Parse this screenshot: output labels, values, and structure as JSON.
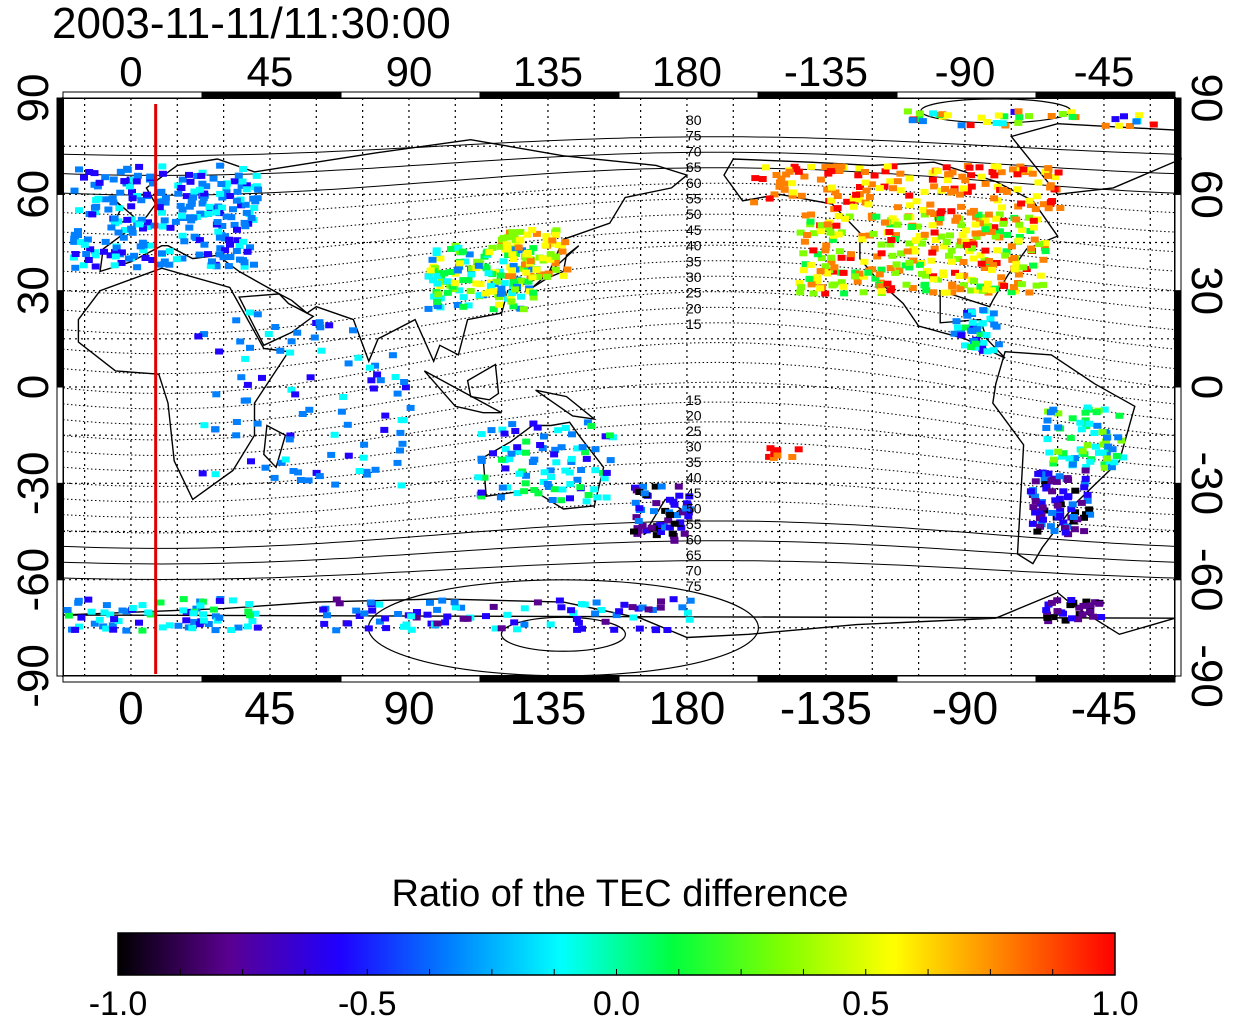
{
  "timestamp": "2003-11-11/11:30:00",
  "map": {
    "lon_ticks": [
      "0",
      "45",
      "90",
      "135",
      "180",
      "-135",
      "-90",
      "-45"
    ],
    "lon_values": [
      0,
      45,
      90,
      135,
      180,
      225,
      270,
      315
    ],
    "lat_ticks": [
      "90",
      "60",
      "30",
      "0",
      "-30",
      "-60",
      "-90"
    ],
    "lat_values": [
      90,
      60,
      30,
      0,
      -30,
      -60,
      -90
    ],
    "lon_range": [
      -22,
      338
    ],
    "lat_range": [
      -90,
      90
    ],
    "marker_line_lon": 8,
    "marker_line_color": "#e00000",
    "contour_labels_north": [
      "80",
      "75",
      "70",
      "65",
      "60",
      "55",
      "50",
      "45",
      "40",
      "35",
      "30",
      "25",
      "20",
      "15"
    ],
    "contour_labels_south": [
      "15",
      "20",
      "25",
      "30",
      "35",
      "40",
      "45",
      "50",
      "55",
      "60",
      "65",
      "70",
      "75"
    ]
  },
  "colorbar": {
    "title": "Ratio of the TEC difference",
    "ticks": [
      "-1.0",
      "-0.5",
      "0.0",
      "0.5",
      "1.0"
    ],
    "tick_values": [
      -1.0,
      -0.5,
      0.0,
      0.5,
      1.0
    ],
    "range": [
      -1.0,
      1.0
    ],
    "colors": [
      "#000000",
      "#5a0090",
      "#2000ff",
      "#0080ff",
      "#00ffff",
      "#00ff40",
      "#80ff00",
      "#ffff00",
      "#ff8000",
      "#ff0000"
    ]
  }
}
